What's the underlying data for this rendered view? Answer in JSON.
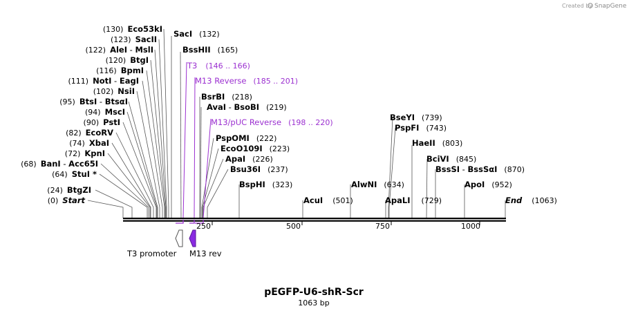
{
  "credit": {
    "prefix": "Created by",
    "brand": "SnapGene"
  },
  "plasmid": {
    "name": "pEGFP-U6-shR-Scr",
    "length": "1063 bp"
  },
  "scale": {
    "ticks": [
      "250",
      "500",
      "750",
      "1000"
    ]
  },
  "features": [
    {
      "name": "T3 promoter",
      "color": "#ffffff",
      "direction": "reverse"
    },
    {
      "name": "M13 rev",
      "color": "#8a2be2",
      "direction": "reverse"
    }
  ],
  "left_sites": [
    {
      "num": "(130)",
      "name": "Eco53kI",
      "suffix": ""
    },
    {
      "num": "(123)",
      "name": "SacII",
      "suffix": ""
    },
    {
      "num": "(122)",
      "name": "AleI",
      "sep": " - ",
      "name2": "MslI"
    },
    {
      "num": "(120)",
      "name": "BtgI"
    },
    {
      "num": "(116)",
      "name": "BpmI"
    },
    {
      "num": "(111)",
      "name": "NotI",
      "sep": " - ",
      "name2": "EagI"
    },
    {
      "num": "(102)",
      "name": "NsiI"
    },
    {
      "num": "(95)",
      "name": "BtsI",
      "sep": " - ",
      "name2": "BtsαI"
    },
    {
      "num": "(94)",
      "name": "MscI"
    },
    {
      "num": "(90)",
      "name": "PstI"
    },
    {
      "num": "(82)",
      "name": "EcoRV"
    },
    {
      "num": "(74)",
      "name": "XbaI"
    },
    {
      "num": "(72)",
      "name": "KpnI"
    },
    {
      "num": "(68)",
      "name": "BanI",
      "sep": " - ",
      "name2": "Acc65I"
    },
    {
      "num": "(64)",
      "name": "StuI *"
    },
    {
      "num": "(24)",
      "name": "BtgZI"
    },
    {
      "num": "(0)",
      "name": "Start"
    }
  ],
  "right_sites": [
    {
      "name": "SacI",
      "num": "(132)"
    },
    {
      "name": "BssHII",
      "num": "(165)"
    },
    {
      "name": "BsrBI",
      "num": "(218)"
    },
    {
      "name": "AvaI",
      "sep": " - ",
      "name2": "BsoBI",
      "num": "(219)"
    },
    {
      "name": "PspOMI",
      "num": "(222)"
    },
    {
      "name": "EcoO109I",
      "num": "(223)"
    },
    {
      "name": "ApaI",
      "num": "(226)"
    },
    {
      "name": "Bsu36I",
      "num": "(237)"
    },
    {
      "name": "BspHI",
      "num": "(323)"
    },
    {
      "name": "AcuI",
      "num": "(501)"
    },
    {
      "name": "AlwNI",
      "num": "(634)"
    },
    {
      "name": "BseYI",
      "num": "(739)"
    },
    {
      "name": "PspFI",
      "num": "(743)"
    },
    {
      "name": "ApaLI",
      "num": "(729)"
    },
    {
      "name": "HaeII",
      "num": "(803)"
    },
    {
      "name": "BciVI",
      "num": "(845)"
    },
    {
      "name": "BssSI",
      "sep": " - ",
      "name2": "BssSαI",
      "num": "(870)"
    },
    {
      "name": "ApoI",
      "num": "(952)"
    },
    {
      "name": "End",
      "num": "(1063)"
    }
  ],
  "primers": [
    {
      "name": "T3",
      "range": "(146 .. 166)"
    },
    {
      "name": "M13 Reverse",
      "range": "(185 .. 201)"
    },
    {
      "name": "M13/pUC Reverse",
      "range": "(198 .. 220)"
    }
  ],
  "colors": {
    "primer": "#9b30d0",
    "feature_m13": "#8a2be2"
  }
}
